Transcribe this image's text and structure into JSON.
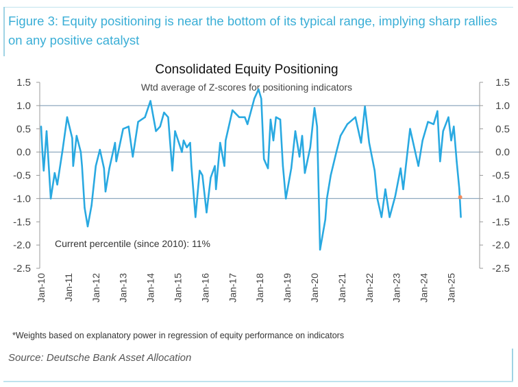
{
  "figure_title": "Figure 3: Equity positioning is near the bottom of its typical range, implying sharp rallies on any positive catalyst",
  "footnote": "*Weights based on explanatory power in regression of equity performance on indicators",
  "source": "Source: Deutsche Bank Asset Allocation",
  "colors": {
    "line": "#29a9e1",
    "marker": "#f08a5d",
    "title": "#3aaed6",
    "grid": "#8fa9bf"
  },
  "chart_data": {
    "type": "line",
    "title": "Consolidated Equity Positioning",
    "subtitle": "Wtd average of Z-scores for positioning indicators",
    "annotation": "Current percentile (since 2010): 11%",
    "ylim": [
      -2.5,
      1.5
    ],
    "yticks": [
      "1.5",
      "1.0",
      "0.5",
      "0.0",
      "-0.5",
      "-1.0",
      "-1.5",
      "-2.0",
      "-2.5"
    ],
    "xticks": [
      "Jan-10",
      "Jan-11",
      "Jan-12",
      "Jan-13",
      "Jan-14",
      "Jan-15",
      "Jan-16",
      "Jan-17",
      "Jan-18",
      "Jan-19",
      "Jan-20",
      "Jan-21",
      "Jan-22",
      "Jan-23",
      "Jan-24",
      "Jan-25"
    ],
    "gridlines_at": [
      1.0,
      0.0,
      -1.0
    ],
    "dual_y_axis": true,
    "series": [
      {
        "points": [
          [
            "2010-01-01",
            0.55
          ],
          [
            "2010-01-20",
            -0.05
          ],
          [
            "2010-02-05",
            -0.4
          ],
          [
            "2010-03-15",
            0.45
          ],
          [
            "2010-05-10",
            -1.0
          ],
          [
            "2010-07-01",
            -0.45
          ],
          [
            "2010-08-05",
            -0.7
          ],
          [
            "2010-10-15",
            0.05
          ],
          [
            "2010-12-15",
            0.75
          ],
          [
            "2011-02-20",
            0.3
          ],
          [
            "2011-03-05",
            -0.3
          ],
          [
            "2011-04-20",
            0.35
          ],
          [
            "2011-06-15",
            0.0
          ],
          [
            "2011-07-01",
            -0.3
          ],
          [
            "2011-08-05",
            -1.2
          ],
          [
            "2011-09-15",
            -1.6
          ],
          [
            "2011-11-05",
            -1.15
          ],
          [
            "2012-01-01",
            -0.3
          ],
          [
            "2012-02-25",
            0.05
          ],
          [
            "2012-04-20",
            -0.35
          ],
          [
            "2012-05-10",
            -0.85
          ],
          [
            "2012-07-01",
            -0.35
          ],
          [
            "2012-09-15",
            0.2
          ],
          [
            "2012-10-01",
            -0.2
          ],
          [
            "2013-01-01",
            0.5
          ],
          [
            "2013-03-15",
            0.55
          ],
          [
            "2013-05-10",
            -0.1
          ],
          [
            "2013-07-20",
            0.65
          ],
          [
            "2013-10-20",
            0.75
          ],
          [
            "2014-01-01",
            1.1
          ],
          [
            "2014-03-15",
            0.45
          ],
          [
            "2014-05-10",
            0.55
          ],
          [
            "2014-07-01",
            0.85
          ],
          [
            "2014-08-25",
            0.75
          ],
          [
            "2014-10-20",
            -0.4
          ],
          [
            "2014-11-25",
            0.45
          ],
          [
            "2015-02-25",
            0.0
          ],
          [
            "2015-03-20",
            0.25
          ],
          [
            "2015-05-01",
            0.1
          ],
          [
            "2015-06-15",
            0.2
          ],
          [
            "2015-07-01",
            -0.3
          ],
          [
            "2015-08-25",
            -1.4
          ],
          [
            "2015-10-20",
            -0.4
          ],
          [
            "2015-11-25",
            -0.5
          ],
          [
            "2016-01-20",
            -1.3
          ],
          [
            "2016-03-15",
            -0.55
          ],
          [
            "2016-05-10",
            -0.3
          ],
          [
            "2016-05-25",
            -0.8
          ],
          [
            "2016-07-20",
            0.2
          ],
          [
            "2016-09-15",
            -0.3
          ],
          [
            "2016-10-01",
            0.25
          ],
          [
            "2017-01-01",
            0.9
          ],
          [
            "2017-04-01",
            0.75
          ],
          [
            "2017-06-15",
            0.75
          ],
          [
            "2017-07-20",
            0.6
          ],
          [
            "2017-10-20",
            1.15
          ],
          [
            "2017-12-15",
            1.35
          ],
          [
            "2018-01-20",
            1.15
          ],
          [
            "2018-02-25",
            -0.15
          ],
          [
            "2018-04-20",
            -0.35
          ],
          [
            "2018-05-25",
            0.7
          ],
          [
            "2018-07-01",
            0.25
          ],
          [
            "2018-08-05",
            0.75
          ],
          [
            "2018-10-01",
            0.7
          ],
          [
            "2018-11-05",
            -0.3
          ],
          [
            "2018-12-15",
            -1.0
          ],
          [
            "2019-02-25",
            -0.35
          ],
          [
            "2019-04-20",
            0.45
          ],
          [
            "2019-06-15",
            -0.1
          ],
          [
            "2019-07-20",
            0.35
          ],
          [
            "2019-08-25",
            -0.45
          ],
          [
            "2019-11-05",
            0.1
          ],
          [
            "2020-01-01",
            0.95
          ],
          [
            "2020-02-05",
            0.55
          ],
          [
            "2020-03-15",
            -2.1
          ],
          [
            "2020-05-25",
            -1.45
          ],
          [
            "2020-06-15",
            -1.0
          ],
          [
            "2020-08-05",
            -0.5
          ],
          [
            "2020-10-20",
            0.0
          ],
          [
            "2020-12-15",
            0.35
          ],
          [
            "2021-03-15",
            0.6
          ],
          [
            "2021-07-01",
            0.75
          ],
          [
            "2021-09-15",
            0.2
          ],
          [
            "2021-11-05",
            0.98
          ],
          [
            "2022-01-01",
            0.2
          ],
          [
            "2022-03-15",
            -0.4
          ],
          [
            "2022-04-20",
            -1.0
          ],
          [
            "2022-06-15",
            -1.4
          ],
          [
            "2022-08-05",
            -0.8
          ],
          [
            "2022-10-01",
            -1.4
          ],
          [
            "2022-12-15",
            -0.95
          ],
          [
            "2023-02-25",
            -0.35
          ],
          [
            "2023-04-01",
            -0.8
          ],
          [
            "2023-07-01",
            0.5
          ],
          [
            "2023-10-20",
            -0.3
          ],
          [
            "2023-12-15",
            0.25
          ],
          [
            "2024-02-25",
            0.65
          ],
          [
            "2024-05-10",
            0.6
          ],
          [
            "2024-07-01",
            0.88
          ],
          [
            "2024-08-05",
            -0.2
          ],
          [
            "2024-09-15",
            0.45
          ],
          [
            "2024-11-25",
            0.75
          ],
          [
            "2025-01-01",
            0.25
          ],
          [
            "2025-02-05",
            0.55
          ],
          [
            "2025-03-15",
            -0.2
          ],
          [
            "2025-04-20",
            -0.8
          ],
          [
            "2025-05-10",
            -1.4
          ]
        ]
      }
    ],
    "current_marker": [
      "2025-05-01",
      -0.97
    ]
  }
}
